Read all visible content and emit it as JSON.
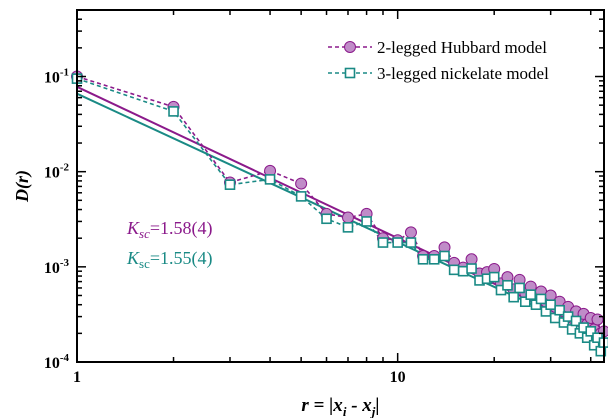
{
  "chart_data": {
    "type": "scatter",
    "xscale": "log",
    "yscale": "log",
    "xlim": [
      1,
      44
    ],
    "ylim": [
      0.0001,
      0.5
    ],
    "x_ticks": [
      1,
      10
    ],
    "x_tick_labels": [
      "1",
      "10"
    ],
    "y_ticks": [
      0.0001,
      0.001,
      0.01,
      0.1
    ],
    "y_tick_labels": [
      {
        "base": "10",
        "exp": "-4"
      },
      {
        "base": "10",
        "exp": "-3"
      },
      {
        "base": "10",
        "exp": "-2"
      },
      {
        "base": "10",
        "exp": "-1"
      }
    ],
    "xlabel": {
      "prefix": "r = |x",
      "sub1": "i",
      "mid": " - x",
      "sub2": "j",
      "suffix": "|"
    },
    "ylabel": "D(r)",
    "legend_position": "top-right",
    "series": [
      {
        "name": "2-legged Hubbard model",
        "color": "#8B1A8B",
        "fill": "#C08CC8",
        "marker": "circle",
        "x": [
          1,
          2,
          3,
          4,
          5,
          6,
          7,
          8,
          9,
          10,
          11,
          12,
          13,
          14,
          15,
          16,
          17,
          18,
          19,
          20,
          21,
          22,
          23,
          24,
          25,
          26,
          27,
          28,
          29,
          30,
          31,
          32,
          33,
          34,
          35,
          36,
          37,
          38,
          39,
          40,
          41,
          42,
          43,
          44
        ],
        "y": [
          0.1,
          0.048,
          0.0077,
          0.0102,
          0.0075,
          0.0036,
          0.0033,
          0.0036,
          0.002,
          0.0019,
          0.0023,
          0.0013,
          0.0013,
          0.0016,
          0.0011,
          0.00098,
          0.0012,
          0.00085,
          0.00088,
          0.00095,
          0.00067,
          0.00078,
          0.00058,
          0.00073,
          0.00053,
          0.00062,
          0.00048,
          0.00055,
          0.00043,
          0.0005,
          0.00038,
          0.00043,
          0.00034,
          0.00038,
          0.00029,
          0.00034,
          0.00027,
          0.00032,
          0.00025,
          0.00029,
          0.00022,
          0.00028,
          0.0002,
          0.00021
        ]
      },
      {
        "name": "3-legged nickelate model",
        "color": "#1A8A85",
        "fill": "#ffffff",
        "marker": "square",
        "x": [
          1,
          2,
          3,
          4,
          5,
          6,
          7,
          8,
          9,
          10,
          11,
          12,
          13,
          14,
          15,
          16,
          17,
          18,
          19,
          20,
          21,
          22,
          23,
          24,
          25,
          26,
          27,
          28,
          29,
          30,
          31,
          32,
          33,
          34,
          35,
          36,
          37,
          38,
          39,
          40,
          41,
          42,
          43,
          44
        ],
        "y": [
          0.095,
          0.043,
          0.0073,
          0.0083,
          0.0055,
          0.0032,
          0.0026,
          0.003,
          0.0018,
          0.0018,
          0.0018,
          0.0012,
          0.0012,
          0.0013,
          0.00093,
          0.0009,
          0.00096,
          0.00072,
          0.00075,
          0.00078,
          0.00057,
          0.00064,
          0.00048,
          0.0006,
          0.00043,
          0.00051,
          0.0004,
          0.00046,
          0.00034,
          0.0004,
          0.00029,
          0.00035,
          0.00026,
          0.0003,
          0.00022,
          0.00027,
          0.0002,
          0.00023,
          0.00018,
          0.00021,
          0.00015,
          0.00018,
          0.00013,
          0.00016
        ]
      }
    ],
    "fits": [
      {
        "color": "#8B1A8B",
        "x": [
          1,
          44
        ],
        "y": [
          0.078,
          0.00019
        ]
      },
      {
        "color": "#1A8A85",
        "x": [
          1,
          44
        ],
        "y": [
          0.066,
          0.00018
        ]
      }
    ],
    "annotations": [
      {
        "sym": "K",
        "sub": "sc",
        "value": "=1.58(4)",
        "color": "#8B1A8B"
      },
      {
        "sym": "K",
        "sub": "sc",
        "value": "=1.55(4)",
        "color": "#1A8A85"
      }
    ]
  }
}
